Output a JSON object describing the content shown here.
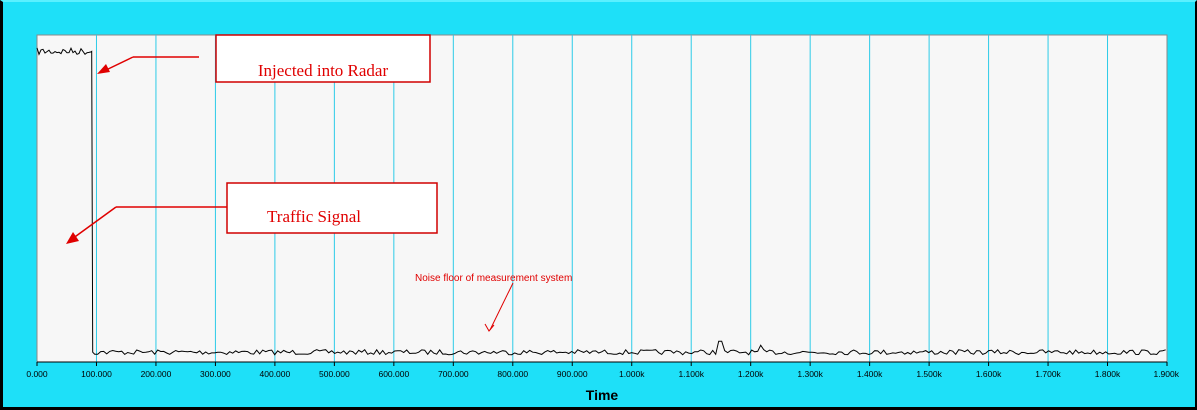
{
  "chart_data": {
    "type": "line",
    "title": "",
    "xlabel": "Time",
    "ylabel": "",
    "xlim": [
      0,
      1900
    ],
    "x_tick_labels": [
      "0.000",
      "100.000",
      "200.000",
      "300.000",
      "400.000",
      "500.000",
      "600.000",
      "700.000",
      "800.000",
      "900.000",
      "1.000k",
      "1.100k",
      "1.200k",
      "1.300k",
      "1.400k",
      "1.500k",
      "1.600k",
      "1.700k",
      "1.800k",
      "1.900k"
    ],
    "grid": {
      "vertical": true,
      "horizontal": false
    },
    "series": [
      {
        "color": "#000000",
        "segments": [
          {
            "x_start": 0,
            "x_end": 92,
            "level": 0.95,
            "note": ""
          },
          {
            "x_start": 92,
            "x_end": 1900,
            "level": 0.03,
            "note": ""
          }
        ]
      }
    ],
    "annotations": [
      {
        "text": "Injected into Radar",
        "style": "boxed"
      },
      {
        "text": "Traffic Signal",
        "style": "boxed"
      },
      {
        "text": "Noise floor of measurement system",
        "style": "small"
      }
    ],
    "colors": {
      "frame": "#1ee0f8",
      "plot_background": "#f7f7f7",
      "grid": "#2ccbe8",
      "annotation": "#e00000",
      "signal": "#000000"
    }
  }
}
